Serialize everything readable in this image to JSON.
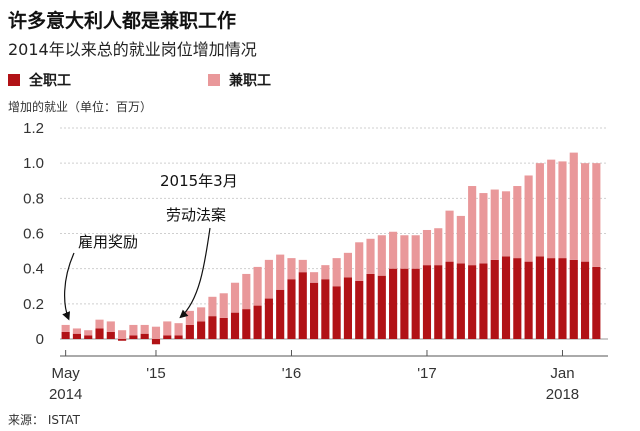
{
  "title": "许多意大利人都是兼职工作",
  "subtitle": "2014年以来总的就业岗位增加情况",
  "source": "来源： ISTAT",
  "chart_data": {
    "type": "bar",
    "stacked": true,
    "ylabel": "增加的就业（单位：百万）",
    "ylim": [
      -0.1,
      1.2
    ],
    "yticks": [
      "1.2",
      "1.0",
      "0.8",
      "0.6",
      "0.4",
      "0.2",
      "0"
    ],
    "ytick_values": [
      1.2,
      1.0,
      0.8,
      0.6,
      0.4,
      0.2,
      0
    ],
    "x_tick_labels": [
      {
        "line1": "May",
        "line2": "2014",
        "index": 0
      },
      {
        "line1": "'15",
        "line2": "",
        "index": 8
      },
      {
        "line1": "'16",
        "line2": "",
        "index": 20
      },
      {
        "line1": "'17",
        "line2": "",
        "index": 32
      },
      {
        "line1": "Jan",
        "line2": "2018",
        "index": 44
      }
    ],
    "series": [
      {
        "name": "全职工",
        "color": "#b11216",
        "values": [
          0.04,
          0.03,
          0.02,
          0.06,
          0.04,
          -0.01,
          0.02,
          0.03,
          -0.03,
          0.02,
          0.02,
          0.08,
          0.1,
          0.13,
          0.12,
          0.15,
          0.17,
          0.19,
          0.23,
          0.28,
          0.34,
          0.38,
          0.32,
          0.34,
          0.3,
          0.35,
          0.33,
          0.37,
          0.36,
          0.4,
          0.4,
          0.4,
          0.42,
          0.42,
          0.44,
          0.43,
          0.42,
          0.43,
          0.45,
          0.47,
          0.46,
          0.44,
          0.47,
          0.46,
          0.46,
          0.45,
          0.44,
          0.41
        ]
      },
      {
        "name": "兼职工",
        "color": "#e9989a",
        "values": [
          0.04,
          0.03,
          0.03,
          0.05,
          0.06,
          0.05,
          0.06,
          0.05,
          0.07,
          0.08,
          0.07,
          0.08,
          0.08,
          0.11,
          0.14,
          0.17,
          0.2,
          0.22,
          0.22,
          0.2,
          0.12,
          0.07,
          0.06,
          0.08,
          0.16,
          0.14,
          0.22,
          0.2,
          0.23,
          0.21,
          0.19,
          0.19,
          0.2,
          0.21,
          0.29,
          0.27,
          0.45,
          0.4,
          0.4,
          0.37,
          0.41,
          0.49,
          0.53,
          0.56,
          0.55,
          0.61,
          0.56,
          0.59
        ]
      }
    ],
    "annotations": [
      {
        "text": "雇用奖励",
        "bar_index": 0
      },
      {
        "lines": [
          "2015年3月",
          "劳动法案"
        ],
        "bar_index": 10
      }
    ]
  }
}
